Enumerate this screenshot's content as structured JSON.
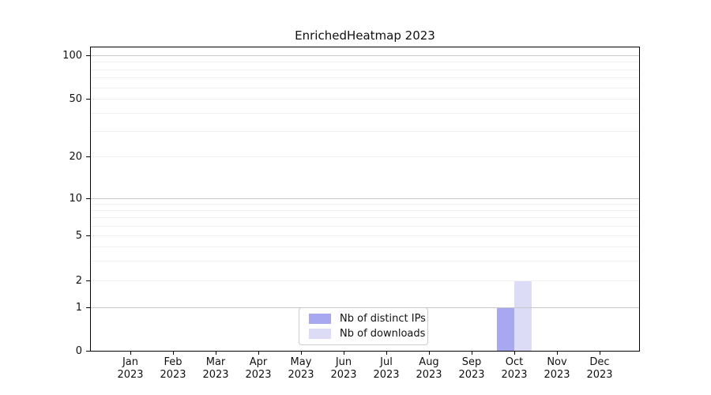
{
  "chart_data": {
    "type": "bar",
    "title": "EnrichedHeatmap 2023",
    "categories": [
      "Jan 2023",
      "Feb 2023",
      "Mar 2023",
      "Apr 2023",
      "May 2023",
      "Jun 2023",
      "Jul 2023",
      "Aug 2023",
      "Sep 2023",
      "Oct 2023",
      "Nov 2023",
      "Dec 2023"
    ],
    "series": [
      {
        "name": "Nb of distinct IPs",
        "color": "#a8a8f0",
        "values": [
          0,
          0,
          0,
          0,
          0,
          0,
          0,
          0,
          0,
          1,
          0,
          0
        ]
      },
      {
        "name": "Nb of downloads",
        "color": "#dcdcf7",
        "values": [
          0,
          0,
          0,
          0,
          0,
          0,
          0,
          0,
          0,
          2,
          0,
          0
        ]
      }
    ],
    "xlabel": "",
    "ylabel": "",
    "yscale": "symlog",
    "ylim": [
      0,
      115
    ],
    "y_ticks": [
      0,
      1,
      2,
      5,
      10,
      20,
      50,
      100
    ],
    "y_major_gridlines": [
      1,
      10,
      100
    ],
    "y_minor_gridlines": [
      2,
      3,
      4,
      5,
      6,
      7,
      8,
      9,
      20,
      30,
      40,
      50,
      60,
      70,
      80,
      90
    ],
    "grid": "horizontal",
    "legend_position": "inside lower center"
  }
}
